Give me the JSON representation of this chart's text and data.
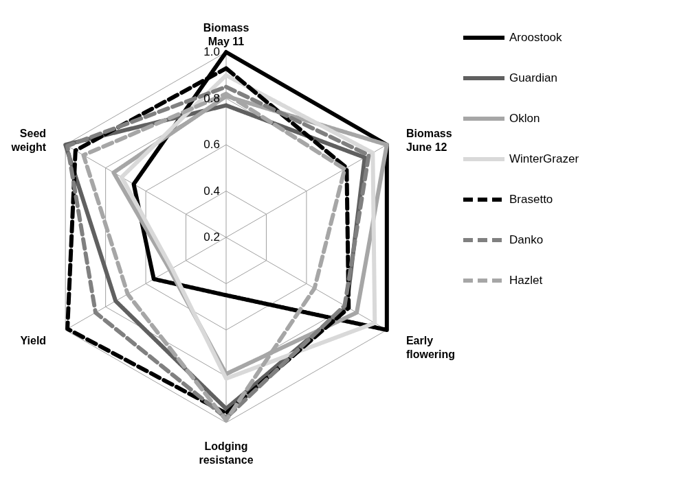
{
  "chart_data": {
    "type": "radar",
    "categories": [
      "Biomass May 11",
      "Biomass June 12",
      "Early flowering",
      "Lodging resistance",
      "Yield",
      "Seed weight"
    ],
    "series": [
      {
        "name": "Aroostook",
        "color": "#000000",
        "line_style": "solid",
        "values": [
          1.0,
          1.0,
          1.0,
          0.45,
          0.56,
          0.66
        ]
      },
      {
        "name": "Guardian",
        "color": "#606060",
        "line_style": "solid",
        "values": [
          0.77,
          0.89,
          0.8,
          0.94,
          0.75,
          1.0
        ]
      },
      {
        "name": "Oklon",
        "color": "#a6a6a6",
        "line_style": "solid",
        "values": [
          0.81,
          1.0,
          0.85,
          0.79,
          0.48,
          0.76
        ]
      },
      {
        "name": "WinterGrazer",
        "color": "#d9d9d9",
        "line_style": "solid",
        "values": [
          0.9,
          0.93,
          0.94,
          0.81,
          0.47,
          0.72
        ]
      },
      {
        "name": "Brasetto",
        "color": "#000000",
        "line_style": "dashed",
        "values": [
          0.93,
          0.8,
          0.81,
          0.96,
          0.99,
          0.95
        ]
      },
      {
        "name": "Danko",
        "color": "#808080",
        "line_style": "dashed",
        "values": [
          0.85,
          0.91,
          0.79,
          0.98,
          0.85,
          0.99
        ]
      },
      {
        "name": "Hazlet",
        "color": "#a6a6a6",
        "line_style": "dashed",
        "values": [
          0.82,
          0.79,
          0.64,
          0.99,
          0.69,
          0.91
        ]
      }
    ],
    "ylim": [
      0.2,
      1.0
    ],
    "yticks": [
      0.2,
      0.4,
      0.6,
      0.8,
      {
        "value": 1.0,
        "label": "1.0"
      }
    ],
    "grid": true,
    "legend": "right"
  }
}
